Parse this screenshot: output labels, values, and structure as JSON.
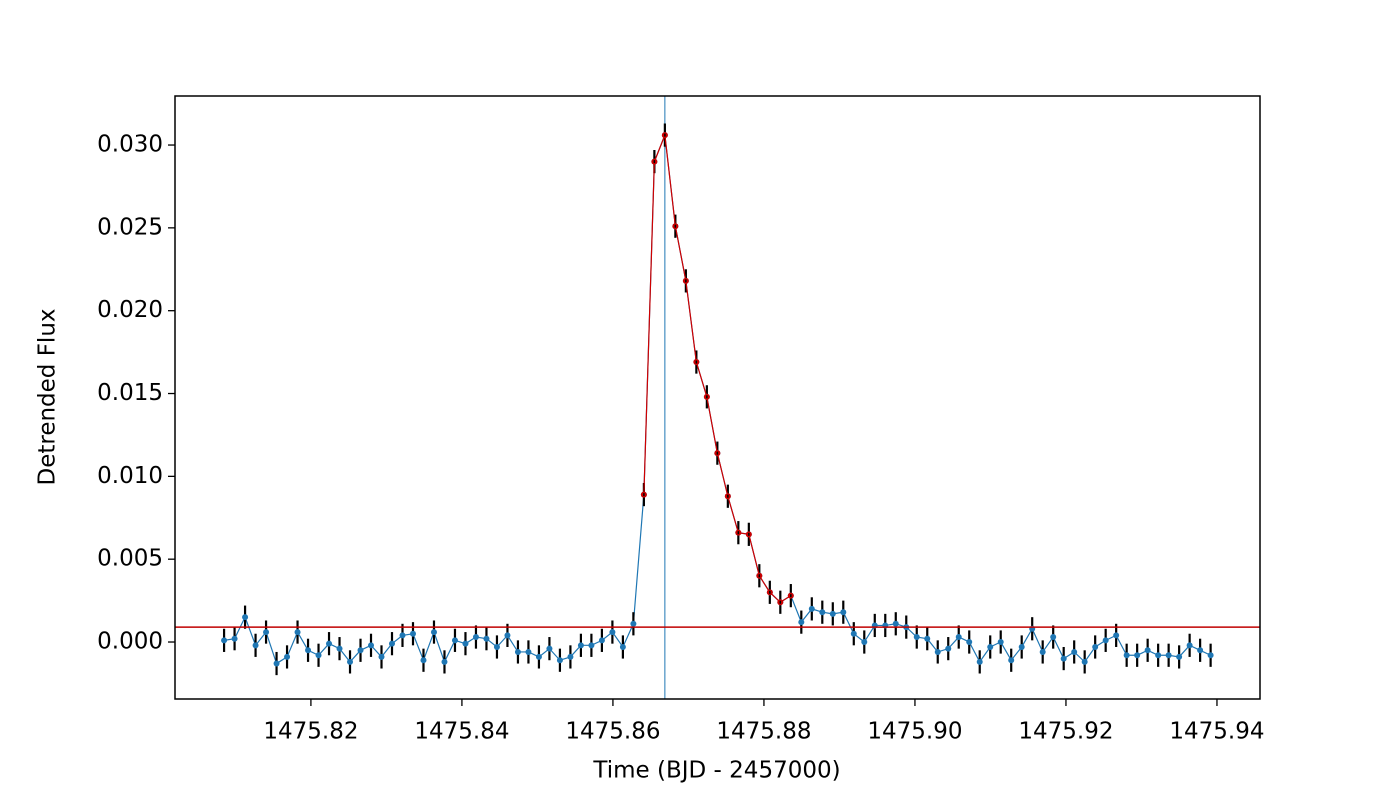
{
  "chart_data": {
    "type": "errorbar",
    "xlabel": "Time (BJD - 2457000)",
    "ylabel": "Detrended Flux",
    "xlim": [
      1475.802,
      1475.9457
    ],
    "ylim": [
      -0.00344,
      0.03296
    ],
    "xticks": [
      1475.82,
      1475.84,
      1475.86,
      1475.88,
      {
        "value": 1475.9,
        "label": "1475.90"
      },
      1475.92,
      1475.94
    ],
    "yticks": [
      {
        "value": 0,
        "label": "0.000"
      },
      {
        "value": 0.005,
        "label": "0.005"
      },
      {
        "value": 0.01,
        "label": "0.010"
      },
      {
        "value": 0.015,
        "label": "0.015"
      },
      {
        "value": 0.02,
        "label": "0.020"
      },
      {
        "value": 0.025,
        "label": "0.025"
      },
      {
        "value": 0.03,
        "label": "0.030"
      }
    ],
    "series": [
      {
        "color": "#1f77b4",
        "yerr": 0.0007,
        "x": [
          1475.8085,
          1475.80989,
          1475.81128,
          1475.81267,
          1475.81406,
          1475.81545,
          1475.81684,
          1475.81823,
          1475.81962,
          1475.82101,
          1475.8224,
          1475.82379,
          1475.82518,
          1475.82657,
          1475.82796,
          1475.82935,
          1475.83074,
          1475.83213,
          1475.83352,
          1475.83491,
          1475.8363,
          1475.83769,
          1475.83908,
          1475.84047,
          1475.84186,
          1475.84325,
          1475.84464,
          1475.84603,
          1475.84742,
          1475.84881,
          1475.8502,
          1475.85159,
          1475.85298,
          1475.85437,
          1475.85576,
          1475.85715,
          1475.85854,
          1475.85993,
          1475.86132,
          1475.86271,
          1475.8641,
          1475.86549,
          1475.86688,
          1475.86827,
          1475.86966,
          1475.87105,
          1475.87244,
          1475.87383,
          1475.87522,
          1475.87661,
          1475.878,
          1475.87939,
          1475.88078,
          1475.88217,
          1475.88356,
          1475.88495,
          1475.88634,
          1475.88773,
          1475.88912,
          1475.89051,
          1475.8919,
          1475.89329,
          1475.89468,
          1475.89607,
          1475.89746,
          1475.89885,
          1475.90024,
          1475.90163,
          1475.90302,
          1475.90441,
          1475.9058,
          1475.90719,
          1475.90858,
          1475.90997,
          1475.91136,
          1475.91275,
          1475.91414,
          1475.91553,
          1475.91692,
          1475.91831,
          1475.9197,
          1475.92109,
          1475.92248,
          1475.92387,
          1475.92526,
          1475.92665,
          1475.92804,
          1475.92943,
          1475.93082,
          1475.93221,
          1475.9336,
          1475.93499,
          1475.93638,
          1475.93777,
          1475.93916
        ],
        "values": [
          0.0001,
          0.0002,
          0.0015,
          -0.0002,
          0.0006,
          -0.0013,
          -0.0009,
          0.0006,
          -0.0005,
          -0.0008,
          -0.0001,
          -0.0004,
          -0.0012,
          -0.0005,
          -0.0002,
          -0.0009,
          -0.0001,
          0.0004,
          0.0005,
          -0.0011,
          0.0006,
          -0.0012,
          0.0001,
          -0.0001,
          0.0003,
          0.0002,
          -0.0003,
          0.0004,
          -0.0006,
          -0.0006,
          -0.0009,
          -0.0004,
          -0.0011,
          -0.0009,
          -0.0002,
          -0.0002,
          0.0001,
          0.0006,
          -0.0003,
          0.0011,
          0.0089,
          0.029,
          0.0306,
          0.0251,
          0.0218,
          0.0169,
          0.0148,
          0.0114,
          0.0088,
          0.0066,
          0.0065,
          0.004,
          0.003,
          0.0024,
          0.0028,
          0.0012,
          0.002,
          0.0018,
          0.0017,
          0.0018,
          0.0005,
          0.0,
          0.001,
          0.001,
          0.0011,
          0.0009,
          0.0003,
          0.0002,
          -0.0006,
          -0.0004,
          0.0003,
          0.0,
          -0.0012,
          -0.0003,
          0.0,
          -0.0011,
          -0.0003,
          0.0008,
          -0.0006,
          0.0003,
          -0.001,
          -0.0006,
          -0.0012,
          -0.0003,
          0.0001,
          0.0004,
          -0.0008,
          -0.0008,
          -0.0005,
          -0.0008,
          -0.0008,
          -0.0009,
          -0.0002,
          -0.0005,
          -0.0008
        ]
      },
      {
        "color": "#d00000",
        "x": [
          1475.8641,
          1475.86549,
          1475.86688,
          1475.86827,
          1475.86966,
          1475.87105,
          1475.87244,
          1475.87383,
          1475.87522,
          1475.87661,
          1475.878,
          1475.87939,
          1475.88078,
          1475.88217,
          1475.88356
        ],
        "values": [
          0.0089,
          0.029,
          0.0306,
          0.0251,
          0.0218,
          0.0169,
          0.0148,
          0.0114,
          0.0088,
          0.0066,
          0.0065,
          0.004,
          0.003,
          0.0024,
          0.0028
        ]
      }
    ],
    "hlines": [
      {
        "y": 0.0009,
        "color": "#c00000"
      }
    ],
    "vlines": [
      {
        "x": 1475.86688,
        "color": "#1f77b4"
      }
    ]
  }
}
